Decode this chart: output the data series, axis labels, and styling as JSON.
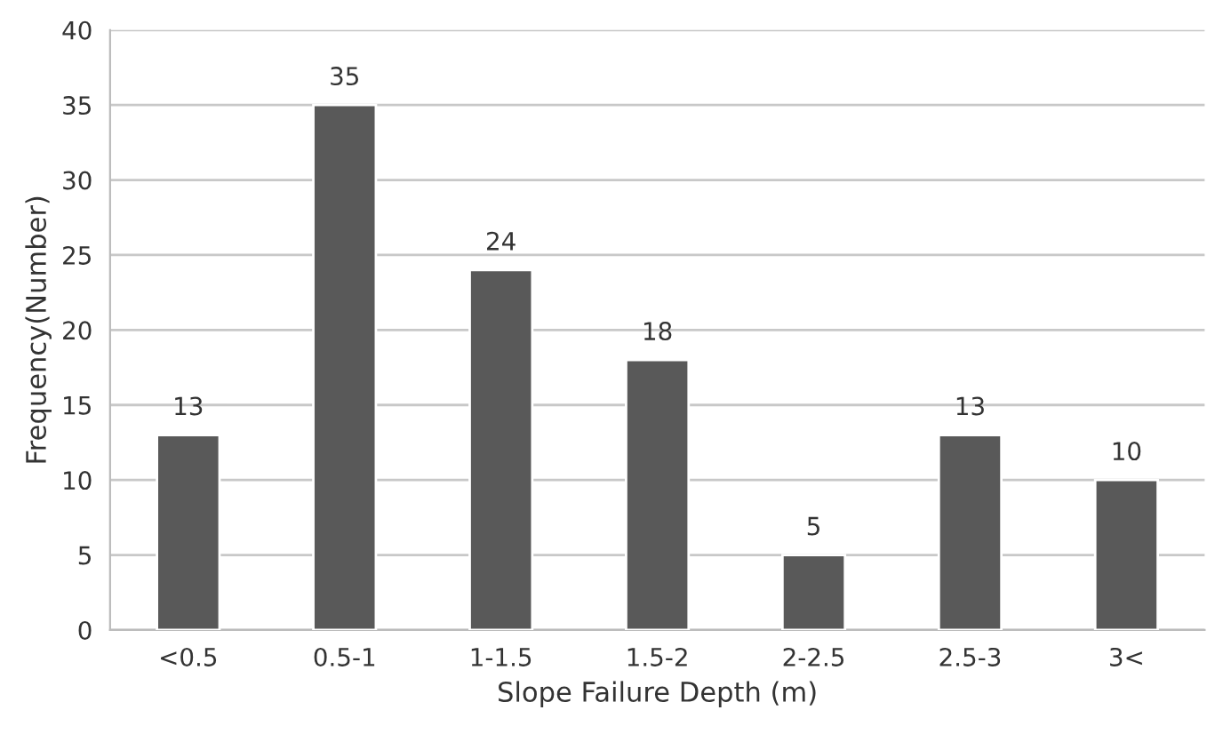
{
  "chart_data": {
    "type": "bar",
    "xlabel": "Slope Failure Depth (m)",
    "ylabel": "Frequency(Number)",
    "categories": [
      "<0.5",
      "0.5-1",
      "1-1.5",
      "1.5-2",
      "2-2.5",
      "2.5-3",
      "3<"
    ],
    "values": [
      13,
      35,
      24,
      18,
      5,
      13,
      10
    ],
    "color": "#595959",
    "ylim": [
      0,
      40
    ],
    "yticks": [
      0,
      5,
      10,
      15,
      20,
      25,
      30,
      35,
      40
    ],
    "grid": "y",
    "data_labels": true
  }
}
